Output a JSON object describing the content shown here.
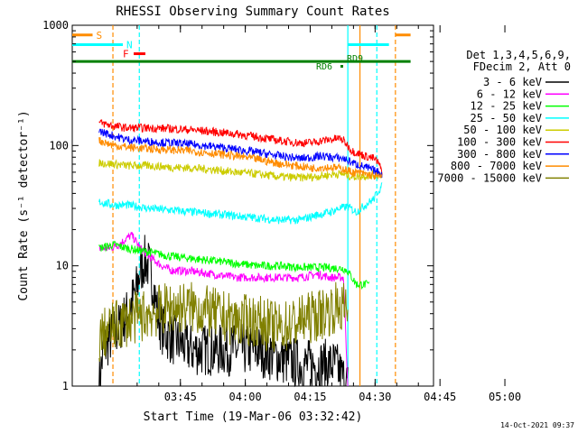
{
  "chart_data": {
    "type": "line",
    "title": "RHESSI Observing Summary Count Rates",
    "xlabel": "Start Time (19-Mar-06 03:32:42)",
    "ylabel": "Count Rate (s⁻¹ detector⁻¹)",
    "y_scale": "log",
    "ylim": [
      1,
      1000
    ],
    "xlim_minutes": [
      -12.7,
      70.8
    ],
    "x_ticks": [
      "03:45",
      "04:00",
      "04:15",
      "04:30",
      "04:45",
      "05:00"
    ],
    "y_ticks": [
      "1",
      "10",
      "100",
      "1000"
    ],
    "grid": false,
    "legend_position": "right",
    "legend_title": [
      "Det 1,3,4,5,6,9,",
      "FDecim 2, Att 0"
    ],
    "footer_date": "14-Oct-2021 09:37",
    "series": [
      {
        "name": "3 - 6 keV",
        "color": "#000000",
        "noisy": true,
        "points": [
          [
            -6.5,
            1
          ],
          [
            -5.5,
            2
          ],
          [
            -4,
            2.5
          ],
          [
            -2,
            3
          ],
          [
            0,
            4
          ],
          [
            2,
            6
          ],
          [
            3,
            9
          ],
          [
            4,
            11
          ],
          [
            5,
            10
          ],
          [
            6,
            7
          ],
          [
            7,
            4
          ],
          [
            8,
            3
          ],
          [
            10,
            2.5
          ],
          [
            15,
            2
          ],
          [
            20,
            2
          ],
          [
            30,
            2
          ],
          [
            40,
            1.5
          ],
          [
            45,
            1.5
          ],
          [
            48,
            1.5
          ],
          [
            51,
            1
          ]
        ]
      },
      {
        "name": "6 - 12 keV",
        "color": "#ff00ff",
        "noisy": true,
        "points": [
          [
            -6.5,
            14
          ],
          [
            -4,
            14
          ],
          [
            -2,
            15
          ],
          [
            0,
            17
          ],
          [
            1,
            18
          ],
          [
            2,
            16
          ],
          [
            3,
            14
          ],
          [
            5,
            12
          ],
          [
            8,
            10
          ],
          [
            10,
            9.2
          ],
          [
            15,
            9
          ],
          [
            20,
            8.5
          ],
          [
            25,
            8
          ],
          [
            30,
            8
          ],
          [
            35,
            8
          ],
          [
            40,
            8
          ],
          [
            44,
            8.5
          ],
          [
            47,
            8
          ],
          [
            50,
            8
          ],
          [
            51,
            1
          ]
        ]
      },
      {
        "name": "12 - 25 keV",
        "color": "#00ff00",
        "noisy": true,
        "points": [
          [
            -6.5,
            14
          ],
          [
            -3,
            15
          ],
          [
            0,
            14
          ],
          [
            5,
            13
          ],
          [
            10,
            12
          ],
          [
            15,
            11.5
          ],
          [
            20,
            11
          ],
          [
            25,
            10.5
          ],
          [
            30,
            10
          ],
          [
            35,
            10
          ],
          [
            40,
            9.7
          ],
          [
            45,
            9.7
          ],
          [
            50,
            9.5
          ],
          [
            51,
            9
          ],
          [
            53,
            7
          ],
          [
            56,
            7
          ]
        ]
      },
      {
        "name": "25 - 50 keV",
        "color": "#00ffff",
        "noisy": true,
        "points": [
          [
            -6.5,
            34
          ],
          [
            -3,
            32
          ],
          [
            0,
            32
          ],
          [
            5,
            30
          ],
          [
            10,
            29
          ],
          [
            15,
            28
          ],
          [
            20,
            27
          ],
          [
            25,
            26
          ],
          [
            30,
            25
          ],
          [
            35,
            24
          ],
          [
            40,
            24
          ],
          [
            43,
            26
          ],
          [
            45,
            27
          ],
          [
            47,
            28
          ],
          [
            49,
            30
          ],
          [
            51,
            31
          ],
          [
            53,
            28
          ],
          [
            55,
            32
          ],
          [
            57,
            36
          ],
          [
            58,
            42
          ],
          [
            59,
            46
          ]
        ]
      },
      {
        "name": "50 - 100 keV",
        "color": "#cccc00",
        "noisy": true,
        "points": [
          [
            -6.5,
            72
          ],
          [
            -3,
            70
          ],
          [
            0,
            68
          ],
          [
            5,
            68
          ],
          [
            10,
            66
          ],
          [
            15,
            65
          ],
          [
            20,
            63
          ],
          [
            25,
            60
          ],
          [
            30,
            58
          ],
          [
            35,
            55
          ],
          [
            40,
            54
          ],
          [
            43,
            55
          ],
          [
            45,
            56
          ],
          [
            48,
            58
          ],
          [
            50,
            58
          ],
          [
            52,
            55
          ],
          [
            55,
            56
          ],
          [
            57,
            57
          ],
          [
            59,
            58
          ]
        ]
      },
      {
        "name": "100 - 300 keV",
        "color": "#ff0000",
        "noisy": true,
        "points": [
          [
            -6.5,
            155
          ],
          [
            -3,
            145
          ],
          [
            0,
            140
          ],
          [
            5,
            140
          ],
          [
            10,
            138
          ],
          [
            15,
            135
          ],
          [
            20,
            130
          ],
          [
            25,
            125
          ],
          [
            30,
            118
          ],
          [
            35,
            110
          ],
          [
            40,
            105
          ],
          [
            43,
            106
          ],
          [
            45,
            110
          ],
          [
            47,
            112
          ],
          [
            49,
            115
          ],
          [
            50,
            110
          ],
          [
            52,
            90
          ],
          [
            55,
            82
          ],
          [
            57,
            78
          ],
          [
            58,
            72
          ],
          [
            59,
            60
          ]
        ]
      },
      {
        "name": "300 - 800 keV",
        "color": "#0000ff",
        "noisy": true,
        "points": [
          [
            -6.5,
            132
          ],
          [
            -3,
            120
          ],
          [
            0,
            112
          ],
          [
            5,
            108
          ],
          [
            10,
            105
          ],
          [
            15,
            102
          ],
          [
            20,
            98
          ],
          [
            25,
            93
          ],
          [
            30,
            88
          ],
          [
            35,
            82
          ],
          [
            40,
            78
          ],
          [
            43,
            80
          ],
          [
            45,
            82
          ],
          [
            47,
            80
          ],
          [
            50,
            78
          ],
          [
            52,
            72
          ],
          [
            55,
            66
          ],
          [
            57,
            62
          ],
          [
            59,
            58
          ]
        ]
      },
      {
        "name": "800 - 7000 keV",
        "color": "#ff8c00",
        "noisy": true,
        "points": [
          [
            -6.5,
            110
          ],
          [
            -3,
            100
          ],
          [
            0,
            97
          ],
          [
            5,
            94
          ],
          [
            10,
            92
          ],
          [
            15,
            90
          ],
          [
            20,
            86
          ],
          [
            25,
            82
          ],
          [
            30,
            77
          ],
          [
            35,
            71
          ],
          [
            40,
            67
          ],
          [
            43,
            65
          ],
          [
            45,
            66
          ],
          [
            47,
            66
          ],
          [
            50,
            64
          ],
          [
            52,
            60
          ],
          [
            55,
            58
          ],
          [
            57,
            56
          ],
          [
            59,
            54
          ]
        ]
      },
      {
        "name": "7000 - 15000 keV",
        "color": "#808000",
        "noisy": true,
        "points": [
          [
            -6.5,
            2.5
          ],
          [
            -4,
            3
          ],
          [
            0,
            3.5
          ],
          [
            5,
            4
          ],
          [
            10,
            4.5
          ],
          [
            15,
            4.5
          ],
          [
            20,
            4
          ],
          [
            25,
            3.5
          ],
          [
            30,
            3.5
          ],
          [
            35,
            3
          ],
          [
            40,
            3.5
          ],
          [
            45,
            4
          ],
          [
            48,
            4.5
          ],
          [
            50,
            4.5
          ],
          [
            51,
            4
          ]
        ]
      }
    ],
    "vertical_markers": [
      {
        "x": -3.3,
        "color": "#ff8c00",
        "style": "dashed"
      },
      {
        "x": 2.8,
        "color": "#00ffff",
        "style": "dashed"
      },
      {
        "x": 51.0,
        "color": "#00ffff",
        "style": "solid"
      },
      {
        "x": 53.8,
        "color": "#ff8c00",
        "style": "solid"
      },
      {
        "x": 57.7,
        "color": "#00ffff",
        "style": "dashed"
      },
      {
        "x": 62.0,
        "color": "#ff8c00",
        "style": "dashed"
      }
    ],
    "flag_bars": [
      {
        "label": "S",
        "color": "#ff8c00",
        "y": 830,
        "segments": [
          [
            -12.7,
            -8
          ],
          [
            62,
            65.5
          ]
        ]
      },
      {
        "label": "N",
        "color": "#00ffff",
        "y": 690,
        "segments": [
          [
            -12.7,
            -1
          ],
          [
            51,
            60.5
          ]
        ]
      },
      {
        "label": "F",
        "color": "#ff0000",
        "y": 580,
        "segments": [
          [
            1.5,
            4.2
          ]
        ]
      },
      {
        "label": "",
        "color": "#008000",
        "y": 500,
        "segments": [
          [
            -12.7,
            65.5
          ]
        ]
      }
    ],
    "annotations": [
      {
        "text": "RD6",
        "color": "#008000"
      },
      {
        "text": "RD9",
        "color": "#008000"
      }
    ]
  }
}
